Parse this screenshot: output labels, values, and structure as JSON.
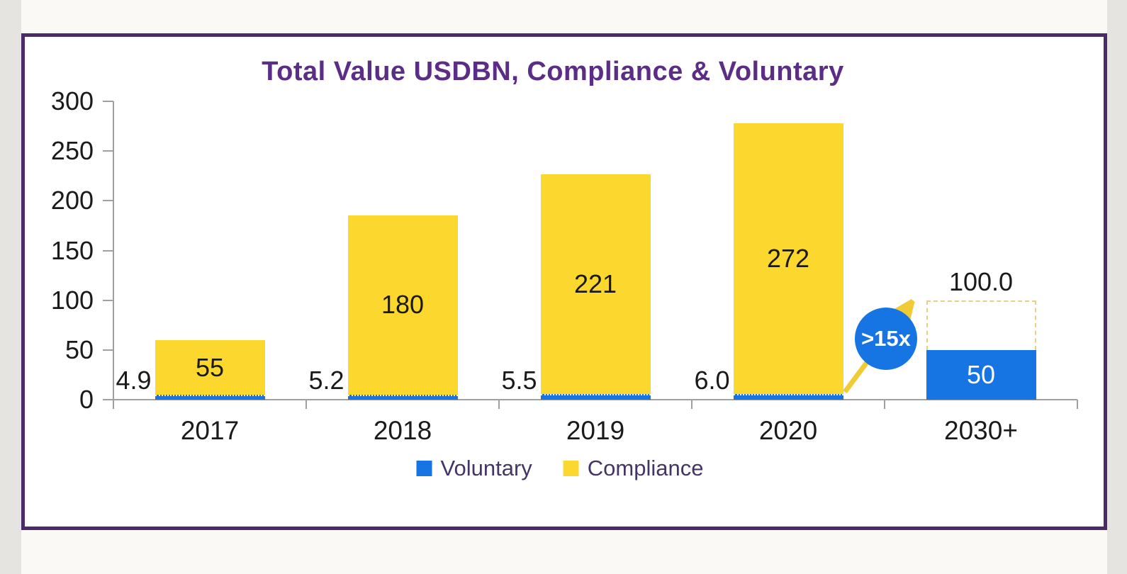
{
  "frame": {
    "border_color": "#4B2A69"
  },
  "chart_data": {
    "type": "bar",
    "stacked": true,
    "title": "Total Value USDBN, Compliance & Voluntary",
    "categories": [
      "2017",
      "2018",
      "2019",
      "2020",
      "2030+"
    ],
    "series": [
      {
        "name": "Voluntary",
        "color": "#1775E3",
        "values": [
          4.9,
          5.2,
          5.5,
          6.0,
          50
        ]
      },
      {
        "name": "Compliance",
        "color": "#FCD72D",
        "values": [
          55,
          180,
          221,
          272,
          null
        ]
      }
    ],
    "labels": {
      "voluntary_outside": [
        "4.9",
        "5.2",
        "5.5",
        "6.0"
      ],
      "compliance_inside": [
        "55",
        "180",
        "221",
        "272"
      ],
      "voluntary_2030_inside": "50",
      "target_2030": "100.0"
    },
    "target_2030_value": 100,
    "annotation": {
      "text": ">15x",
      "circle_color": "#1775E3",
      "arrow_color": "#F0CB35"
    },
    "yticks": [
      0,
      50,
      100,
      150,
      200,
      250,
      300
    ],
    "ylim": [
      0,
      300
    ],
    "grid": false,
    "legend_position": "bottom",
    "legend": [
      {
        "label": "Voluntary",
        "color": "#1775E3"
      },
      {
        "label": "Compliance",
        "color": "#FCD72D"
      }
    ],
    "colors": {
      "title": "#5B2D86",
      "axis": "#A0A0A0",
      "tick_text": "#1A1A1A",
      "legend_text": "#443566",
      "target_dash": "#E7CF8A"
    }
  }
}
